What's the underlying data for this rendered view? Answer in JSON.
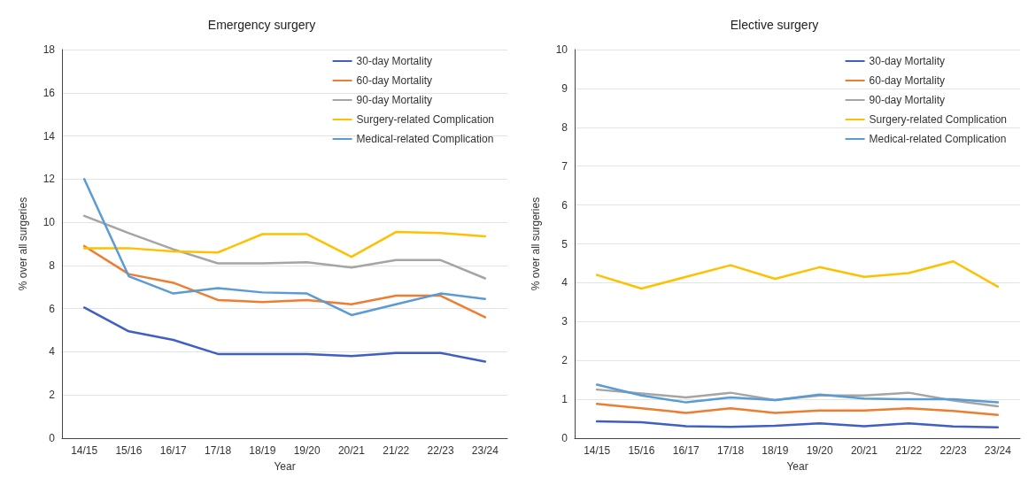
{
  "chart_data": [
    {
      "type": "line",
      "title": "Emergency surgery",
      "xlabel": "Year",
      "ylabel": "% over all surgeries",
      "categories": [
        "14/15",
        "15/16",
        "16/17",
        "17/18",
        "18/19",
        "19/20",
        "20/21",
        "21/22",
        "22/23",
        "23/24"
      ],
      "ylim": [
        0,
        18
      ],
      "yticks": [
        0,
        2,
        4,
        6,
        8,
        10,
        12,
        14,
        16,
        18
      ],
      "grid": "y",
      "legend": "top right",
      "marker": "none",
      "line_style": "solid",
      "series": [
        {
          "name": "30-day Mortality",
          "color": "#3f5fc4",
          "values": [
            6.05,
            4.95,
            4.55,
            3.9,
            3.9,
            3.9,
            3.8,
            3.95,
            3.95,
            3.55
          ]
        },
        {
          "name": "60-day Mortality",
          "color": "#ed7d31",
          "values": [
            8.9,
            7.6,
            7.2,
            6.4,
            6.3,
            6.4,
            6.2,
            6.6,
            6.6,
            5.6
          ]
        },
        {
          "name": "90-day Mortality",
          "color": "#a5a5a5",
          "values": [
            10.3,
            9.5,
            8.75,
            8.1,
            8.1,
            8.15,
            7.9,
            8.25,
            8.25,
            7.4
          ]
        },
        {
          "name": "Surgery-related Complication",
          "color": "#ffc000",
          "values": [
            8.8,
            8.8,
            8.65,
            8.6,
            9.45,
            9.45,
            8.4,
            9.55,
            9.5,
            9.35
          ]
        },
        {
          "name": "Medical-related Complication",
          "color": "#5b9bd5",
          "values": [
            12.0,
            7.5,
            6.7,
            6.95,
            6.75,
            6.7,
            5.7,
            6.2,
            6.7,
            6.45
          ]
        }
      ]
    },
    {
      "type": "line",
      "title": "Elective surgery",
      "xlabel": "Year",
      "ylabel": "% over all surgeries",
      "categories": [
        "14/15",
        "15/16",
        "16/17",
        "17/18",
        "18/19",
        "19/20",
        "20/21",
        "21/22",
        "22/23",
        "23/24"
      ],
      "ylim": [
        0,
        10
      ],
      "yticks": [
        0,
        1,
        2,
        3,
        4,
        5,
        6,
        7,
        8,
        9,
        10
      ],
      "grid": "y",
      "legend": "top right",
      "marker": "none",
      "line_style": "solid",
      "series": [
        {
          "name": "30-day Mortality",
          "color": "#3f5fc4",
          "values": [
            0.43,
            0.41,
            0.31,
            0.29,
            0.32,
            0.38,
            0.31,
            0.38,
            0.3,
            0.28
          ]
        },
        {
          "name": "60-day Mortality",
          "color": "#ed7d31",
          "values": [
            0.88,
            0.77,
            0.65,
            0.77,
            0.65,
            0.71,
            0.71,
            0.77,
            0.7,
            0.6
          ]
        },
        {
          "name": "90-day Mortality",
          "color": "#a5a5a5",
          "values": [
            1.25,
            1.15,
            1.05,
            1.17,
            0.98,
            1.1,
            1.1,
            1.17,
            0.97,
            0.82
          ]
        },
        {
          "name": "Surgery-related Complication",
          "color": "#ffc000",
          "values": [
            4.2,
            3.85,
            4.15,
            4.45,
            4.1,
            4.4,
            4.15,
            4.25,
            4.55,
            3.9
          ]
        },
        {
          "name": "Medical-related Complication",
          "color": "#5b9bd5",
          "values": [
            1.38,
            1.1,
            0.92,
            1.05,
            0.98,
            1.12,
            1.02,
            1.0,
            1.0,
            0.92
          ]
        }
      ]
    }
  ]
}
